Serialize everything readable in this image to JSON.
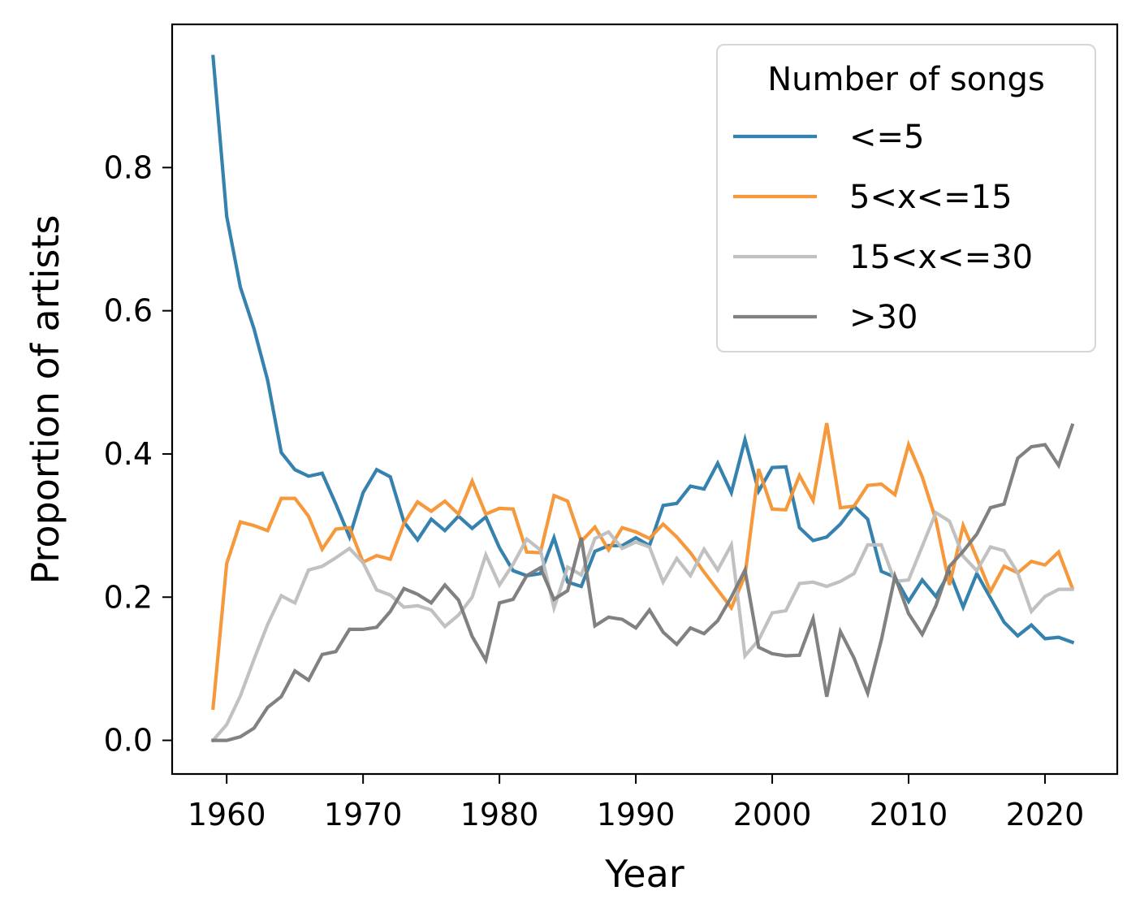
{
  "chart_data": {
    "type": "line",
    "xlabel": "Year",
    "ylabel": "Proportion of artists",
    "xlim": [
      1956,
      2025.3
    ],
    "ylim": [
      -0.047,
      1.0
    ],
    "xticks": [
      1960,
      1970,
      1980,
      1990,
      2000,
      2010,
      2020
    ],
    "yticks": [
      0.0,
      0.2,
      0.4,
      0.6,
      0.8
    ],
    "ytick_labels": [
      "0.0",
      "0.2",
      "0.4",
      "0.6",
      "0.8"
    ],
    "grid": false,
    "legend": {
      "title": "Number of songs",
      "position": "top-right"
    },
    "x": [
      1959,
      1960,
      1961,
      1962,
      1963,
      1964,
      1965,
      1966,
      1967,
      1968,
      1969,
      1970,
      1971,
      1972,
      1973,
      1974,
      1975,
      1976,
      1977,
      1978,
      1979,
      1980,
      1981,
      1982,
      1983,
      1984,
      1985,
      1986,
      1987,
      1988,
      1989,
      1990,
      1991,
      1992,
      1993,
      1994,
      1995,
      1996,
      1997,
      1998,
      1999,
      2000,
      2001,
      2002,
      2003,
      2004,
      2005,
      2006,
      2007,
      2008,
      2009,
      2010,
      2011,
      2012,
      2013,
      2014,
      2015,
      2016,
      2017,
      2018,
      2019,
      2020,
      2021,
      2022
    ],
    "series": [
      {
        "name": "<=5",
        "color": "#2b7bab",
        "values": [
          0.955,
          0.732,
          0.633,
          0.575,
          0.503,
          0.402,
          0.378,
          0.369,
          0.373,
          0.33,
          0.284,
          0.346,
          0.378,
          0.368,
          0.305,
          0.28,
          0.309,
          0.293,
          0.313,
          0.296,
          0.312,
          0.269,
          0.237,
          0.23,
          0.233,
          0.283,
          0.221,
          0.215,
          0.264,
          0.272,
          0.272,
          0.283,
          0.272,
          0.328,
          0.331,
          0.355,
          0.351,
          0.387,
          0.346,
          0.42,
          0.348,
          0.381,
          0.382,
          0.297,
          0.279,
          0.284,
          0.302,
          0.327,
          0.309,
          0.236,
          0.228,
          0.194,
          0.224,
          0.201,
          0.235,
          0.186,
          0.233,
          0.199,
          0.165,
          0.146,
          0.161,
          0.142,
          0.144,
          0.137
        ]
      },
      {
        "name": "5<x<=15",
        "color": "#f59433",
        "values": [
          0.045,
          0.247,
          0.305,
          0.3,
          0.293,
          0.338,
          0.338,
          0.313,
          0.267,
          0.295,
          0.297,
          0.249,
          0.258,
          0.253,
          0.303,
          0.333,
          0.32,
          0.334,
          0.316,
          0.362,
          0.316,
          0.324,
          0.323,
          0.263,
          0.262,
          0.342,
          0.334,
          0.278,
          0.298,
          0.266,
          0.297,
          0.291,
          0.282,
          0.302,
          0.284,
          0.262,
          0.235,
          0.21,
          0.185,
          0.23,
          0.379,
          0.323,
          0.322,
          0.37,
          0.335,
          0.443,
          0.325,
          0.327,
          0.356,
          0.358,
          0.343,
          0.413,
          0.368,
          0.308,
          0.217,
          0.3,
          0.255,
          0.208,
          0.243,
          0.234,
          0.25,
          0.245,
          0.263,
          0.213
        ]
      },
      {
        "name": "15<x<=30",
        "color": "#bebebe",
        "values": [
          0.0,
          0.022,
          0.062,
          0.113,
          0.162,
          0.202,
          0.192,
          0.238,
          0.243,
          0.255,
          0.268,
          0.248,
          0.21,
          0.203,
          0.186,
          0.188,
          0.182,
          0.159,
          0.175,
          0.2,
          0.259,
          0.217,
          0.246,
          0.281,
          0.266,
          0.185,
          0.242,
          0.231,
          0.282,
          0.291,
          0.268,
          0.277,
          0.27,
          0.221,
          0.254,
          0.23,
          0.267,
          0.238,
          0.273,
          0.118,
          0.14,
          0.178,
          0.181,
          0.219,
          0.221,
          0.215,
          0.222,
          0.233,
          0.273,
          0.273,
          0.222,
          0.224,
          0.271,
          0.318,
          0.306,
          0.257,
          0.237,
          0.27,
          0.265,
          0.234,
          0.18,
          0.201,
          0.211,
          0.211
        ]
      },
      {
        "name": ">30",
        "color": "#7a7a7a",
        "values": [
          0.0,
          0.0,
          0.005,
          0.017,
          0.046,
          0.061,
          0.097,
          0.084,
          0.12,
          0.124,
          0.155,
          0.155,
          0.158,
          0.18,
          0.212,
          0.204,
          0.192,
          0.217,
          0.196,
          0.145,
          0.112,
          0.192,
          0.197,
          0.23,
          0.241,
          0.197,
          0.209,
          0.283,
          0.16,
          0.172,
          0.169,
          0.157,
          0.182,
          0.151,
          0.134,
          0.157,
          0.149,
          0.167,
          0.2,
          0.238,
          0.13,
          0.121,
          0.118,
          0.119,
          0.17,
          0.061,
          0.152,
          0.115,
          0.066,
          0.14,
          0.229,
          0.177,
          0.148,
          0.188,
          0.243,
          0.264,
          0.288,
          0.325,
          0.33,
          0.394,
          0.41,
          0.413,
          0.384,
          0.44
        ]
      }
    ]
  }
}
